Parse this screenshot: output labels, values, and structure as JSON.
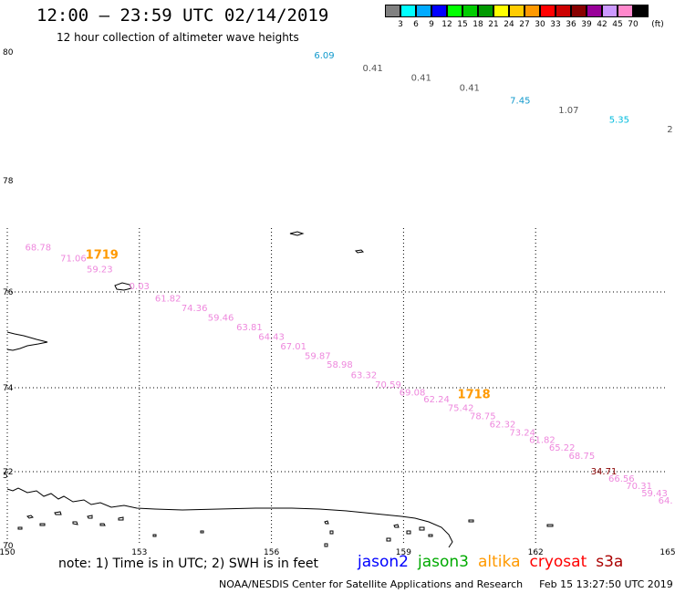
{
  "header": {
    "title": "12:00 – 23:59 UTC 02/14/2019",
    "subtitle": "12 hour collection of altimeter wave heights"
  },
  "scale": {
    "unit": "(ft)",
    "bins": [
      {
        "label": "3",
        "color": "#808080"
      },
      {
        "label": "6",
        "color": "#00ffff"
      },
      {
        "label": "9",
        "color": "#00aaff"
      },
      {
        "label": "12",
        "color": "#0000ff"
      },
      {
        "label": "15",
        "color": "#00ff00"
      },
      {
        "label": "18",
        "color": "#00cc00"
      },
      {
        "label": "21",
        "color": "#009900"
      },
      {
        "label": "24",
        "color": "#ffff00"
      },
      {
        "label": "27",
        "color": "#ffcc00"
      },
      {
        "label": "30",
        "color": "#ff9900"
      },
      {
        "label": "33",
        "color": "#ff0000"
      },
      {
        "label": "36",
        "color": "#cc0000"
      },
      {
        "label": "39",
        "color": "#880000"
      },
      {
        "label": "42",
        "color": "#990099"
      },
      {
        "label": "45",
        "color": "#cc99ff"
      },
      {
        "label": "70",
        "color": "#ff88cc"
      },
      {
        "label": "",
        "color": "#000000"
      }
    ]
  },
  "axes": {
    "lat_labels": [
      "80",
      "78",
      "76",
      "74",
      "72",
      "70"
    ],
    "lat_partial": "5",
    "lon_labels": [
      "150",
      "153",
      "156",
      "159",
      "162",
      "165"
    ]
  },
  "observations": [
    {
      "value": "6.09",
      "lon": 157.2,
      "lat": 79.9,
      "color": "#1199cc"
    },
    {
      "value": "0.41",
      "lon": 158.3,
      "lat": 79.7,
      "color": "#555555"
    },
    {
      "value": "0.41",
      "lon": 159.4,
      "lat": 79.55,
      "color": "#555555"
    },
    {
      "value": "0.41",
      "lon": 160.5,
      "lat": 79.4,
      "color": "#555555"
    },
    {
      "value": "7.45",
      "lon": 161.65,
      "lat": 79.2,
      "color": "#1199cc"
    },
    {
      "value": "1.07",
      "lon": 162.75,
      "lat": 79.05,
      "color": "#555555"
    },
    {
      "value": "5.35",
      "lon": 163.9,
      "lat": 78.9,
      "color": "#00bbdd"
    },
    {
      "value": "2",
      "lon": 165.05,
      "lat": 78.75,
      "color": "#555555"
    },
    {
      "value": "68.78",
      "lon": 150.7,
      "lat": 76.75,
      "color": "#ee88dd"
    },
    {
      "value": "71.06",
      "lon": 151.5,
      "lat": 76.55,
      "color": "#ee88dd"
    },
    {
      "value": "59.23",
      "lon": 152.1,
      "lat": 76.35,
      "color": "#ee88dd"
    },
    {
      "value": "0.03",
      "lon": 153.0,
      "lat": 76.05,
      "color": "#ee88dd"
    },
    {
      "value": "61.82",
      "lon": 153.65,
      "lat": 75.8,
      "color": "#ee88dd"
    },
    {
      "value": "74.36",
      "lon": 154.25,
      "lat": 75.6,
      "color": "#ee88dd"
    },
    {
      "value": "59.46",
      "lon": 154.85,
      "lat": 75.4,
      "color": "#ee88dd"
    },
    {
      "value": "63.81",
      "lon": 155.5,
      "lat": 75.2,
      "color": "#ee88dd"
    },
    {
      "value": "64.43",
      "lon": 156.0,
      "lat": 75.0,
      "color": "#ee88dd"
    },
    {
      "value": "67.01",
      "lon": 156.5,
      "lat": 74.8,
      "color": "#ee88dd"
    },
    {
      "value": "59.87",
      "lon": 157.05,
      "lat": 74.6,
      "color": "#ee88dd"
    },
    {
      "value": "58.98",
      "lon": 157.55,
      "lat": 74.42,
      "color": "#ee88dd"
    },
    {
      "value": "63.32",
      "lon": 158.1,
      "lat": 74.2,
      "color": "#ee88dd"
    },
    {
      "value": "70.59",
      "lon": 158.65,
      "lat": 74.0,
      "color": "#ee88dd"
    },
    {
      "value": "69.08",
      "lon": 159.2,
      "lat": 73.82,
      "color": "#ee88dd"
    },
    {
      "value": "62.24",
      "lon": 159.75,
      "lat": 73.65,
      "color": "#ee88dd"
    },
    {
      "value": "75.42",
      "lon": 160.3,
      "lat": 73.45,
      "color": "#ee88dd"
    },
    {
      "value": "78.75",
      "lon": 160.8,
      "lat": 73.25,
      "color": "#ee88dd"
    },
    {
      "value": "62.32",
      "lon": 161.25,
      "lat": 73.05,
      "color": "#ee88dd"
    },
    {
      "value": "73.24",
      "lon": 161.7,
      "lat": 72.86,
      "color": "#ee88dd"
    },
    {
      "value": "61.82",
      "lon": 162.15,
      "lat": 72.68,
      "color": "#ee88dd"
    },
    {
      "value": "65.22",
      "lon": 162.6,
      "lat": 72.5,
      "color": "#ee88dd"
    },
    {
      "value": "68.75",
      "lon": 163.05,
      "lat": 72.3,
      "color": "#ee88dd"
    },
    {
      "value": "34.71",
      "lon": 163.55,
      "lat": 71.93,
      "color": "#880000"
    },
    {
      "value": "66.56",
      "lon": 163.95,
      "lat": 71.73,
      "color": "#ee88dd"
    },
    {
      "value": "70.31",
      "lon": 164.35,
      "lat": 71.53,
      "color": "#ee88dd"
    },
    {
      "value": "59.43",
      "lon": 164.7,
      "lat": 71.33,
      "color": "#ee88dd"
    },
    {
      "value": "64.",
      "lon": 164.95,
      "lat": 71.14,
      "color": "#ee88dd"
    }
  ],
  "time_markers": [
    {
      "label": "1719",
      "lon": 152.15,
      "lat": 76.6,
      "color": "#ff9900"
    },
    {
      "label": "1718",
      "lon": 160.6,
      "lat": 73.75,
      "color": "#ff9900"
    }
  ],
  "note": "note: 1) Time is in UTC; 2) SWH is in feet",
  "legend": [
    {
      "label": "jason2",
      "color": "#0000ff"
    },
    {
      "label": "jason3",
      "color": "#00aa00"
    },
    {
      "label": "altika",
      "color": "#ff9900"
    },
    {
      "label": "cryosat",
      "color": "#ff0000"
    },
    {
      "label": "s3a",
      "color": "#aa0000"
    }
  ],
  "footer": {
    "credit": "NOAA/NESDIS Center for Satellite Applications and Research",
    "timestamp": "Feb 15 13:27:50 UTC 2019"
  }
}
